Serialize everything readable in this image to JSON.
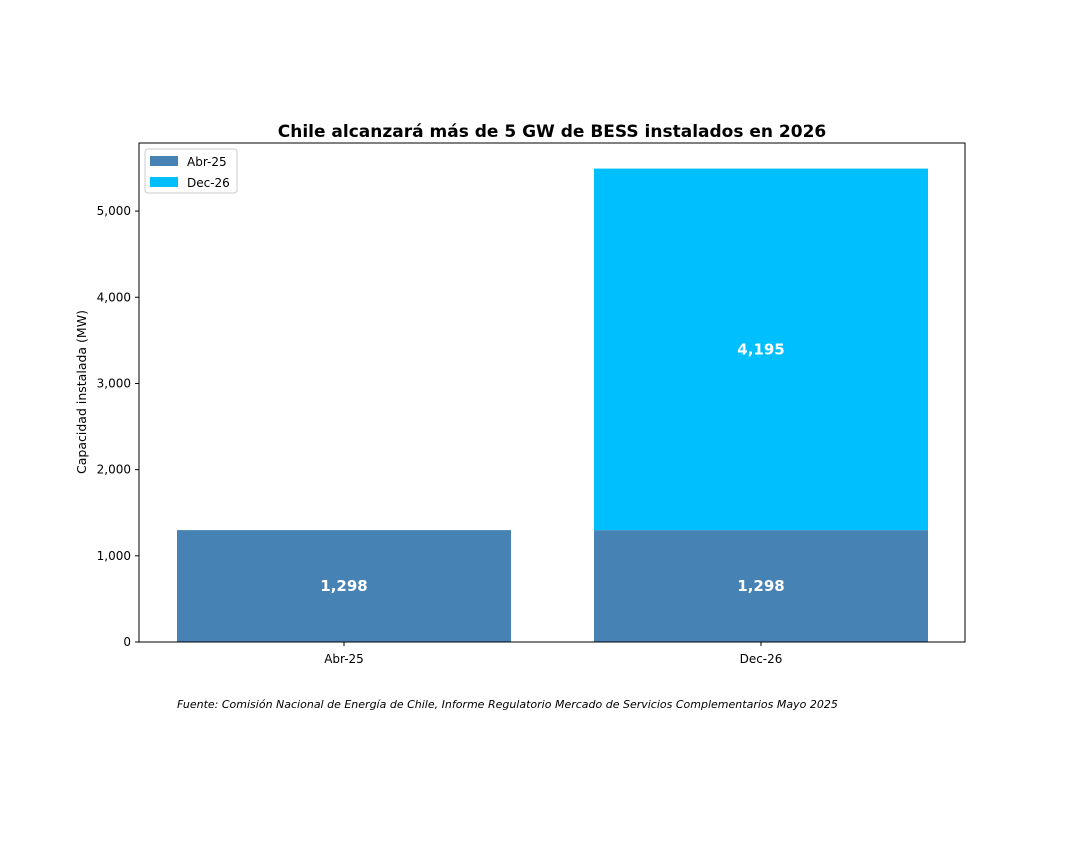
{
  "chart_data": {
    "type": "bar",
    "stacked": true,
    "title": "Chile alcanzará más de 5 GW de BESS instalados en 2026",
    "xlabel": "",
    "ylabel": "Capacidad instalada (MW)",
    "categories": [
      "Abr-25",
      "Dec-26"
    ],
    "series": [
      {
        "name": "Abr-25",
        "color": "#4682b4",
        "values": [
          1298,
          1298
        ],
        "labels": [
          "1,298",
          "1,298"
        ]
      },
      {
        "name": "Dec-26",
        "color": "#00bfff",
        "values": [
          0,
          4195
        ],
        "labels": [
          "",
          "4,195"
        ]
      }
    ],
    "ylim": [
      0,
      5790
    ],
    "yticks": [
      0,
      1000,
      2000,
      3000,
      4000,
      5000
    ],
    "ytick_labels": [
      "0",
      "1,000",
      "2,000",
      "3,000",
      "4,000",
      "5,000"
    ],
    "grid": false,
    "legend_position": "top-left"
  },
  "footnote": "Fuente: Comisión Nacional de Energía de Chile, Informe Regulatorio Mercado de Servicios Complementarios Mayo 2025"
}
